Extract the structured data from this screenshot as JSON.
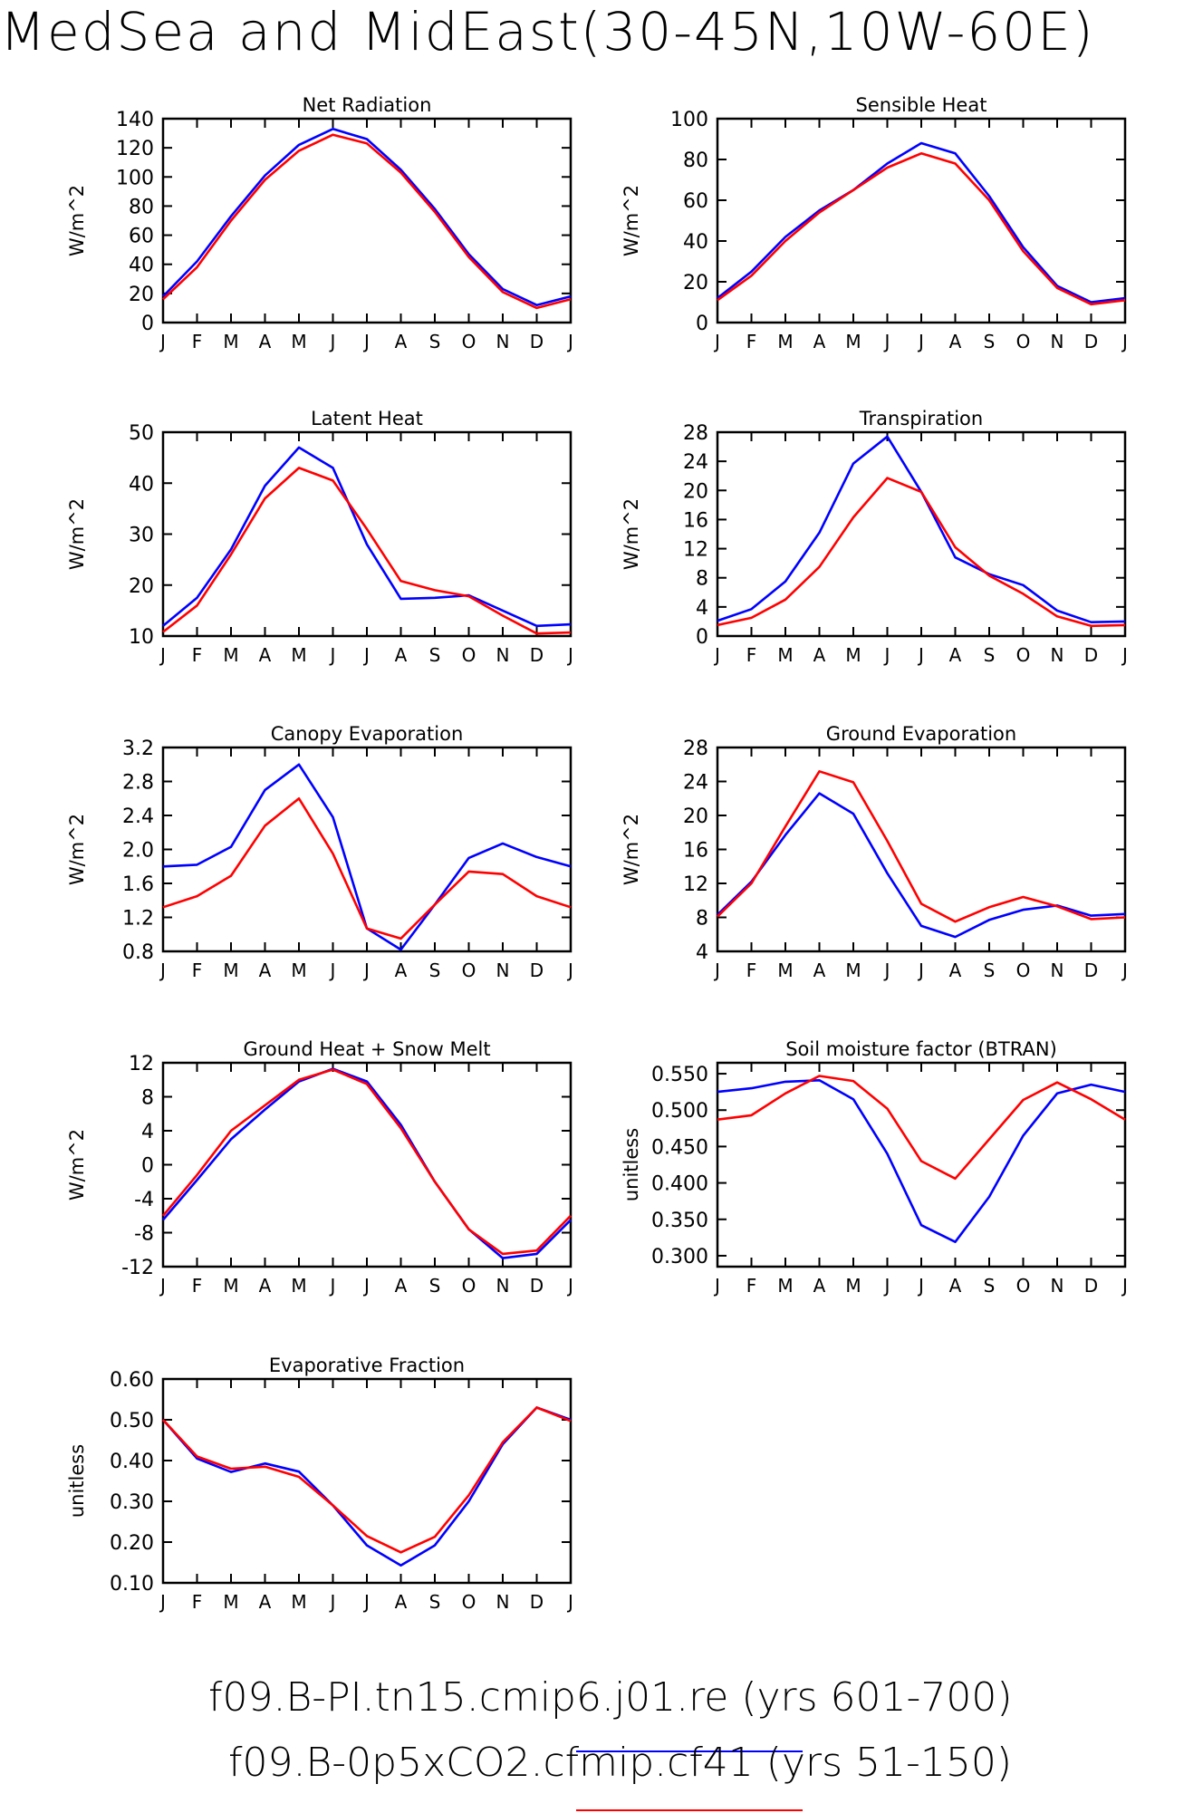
{
  "title": "MedSea and MidEast(30-45N,10W-60E)",
  "colors": {
    "run1": "#0000ff",
    "run2": "#ff0000"
  },
  "legend": [
    {
      "label": "f09.B-PI.tn15.cmip6.j01.re (yrs 601-700)",
      "color": "#0000ff"
    },
    {
      "label": "f09.B-0p5xCO2.cfmip.cf41 (yrs 51-150)",
      "color": "#ff0000"
    }
  ],
  "chart_data": [
    {
      "type": "line",
      "title": "Net Radiation",
      "ylabel": "W/m^2",
      "categories": [
        "J",
        "F",
        "M",
        "A",
        "M",
        "J",
        "J",
        "A",
        "S",
        "O",
        "N",
        "D",
        "J"
      ],
      "ylim": [
        0,
        140
      ],
      "yticks": [
        "0",
        "20",
        "40",
        "60",
        "80",
        "100",
        "120",
        "140"
      ],
      "series": [
        {
          "color": "#0000ff",
          "values": [
            18,
            42,
            73,
            101,
            122,
            133,
            126,
            105,
            78,
            47,
            23,
            12,
            18
          ]
        },
        {
          "color": "#ff0000",
          "values": [
            16,
            38,
            70,
            98,
            118,
            129,
            123,
            103,
            76,
            45,
            21,
            10,
            16
          ]
        }
      ]
    },
    {
      "type": "line",
      "title": "Sensible Heat",
      "ylabel": "W/m^2",
      "categories": [
        "J",
        "F",
        "M",
        "A",
        "M",
        "J",
        "J",
        "A",
        "S",
        "O",
        "N",
        "D",
        "J"
      ],
      "ylim": [
        0,
        100
      ],
      "yticks": [
        "0",
        "20",
        "40",
        "60",
        "80",
        "100"
      ],
      "series": [
        {
          "color": "#0000ff",
          "values": [
            12,
            25,
            42,
            55,
            65,
            78,
            88,
            83,
            62,
            37,
            18,
            10,
            12
          ]
        },
        {
          "color": "#ff0000",
          "values": [
            11,
            23,
            40,
            54,
            65,
            76,
            83,
            78,
            60,
            35,
            17,
            9,
            11
          ]
        }
      ]
    },
    {
      "type": "line",
      "title": "Latent Heat",
      "ylabel": "W/m^2",
      "categories": [
        "J",
        "F",
        "M",
        "A",
        "M",
        "J",
        "J",
        "A",
        "S",
        "O",
        "N",
        "D",
        "J"
      ],
      "ylim": [
        10,
        50
      ],
      "yticks": [
        "10",
        "20",
        "30",
        "40",
        "50"
      ],
      "series": [
        {
          "color": "#0000ff",
          "values": [
            12,
            17.5,
            27,
            39.5,
            47,
            43,
            28,
            17.3,
            17.5,
            18,
            15,
            12,
            12.3
          ]
        },
        {
          "color": "#ff0000",
          "values": [
            10.8,
            16,
            26,
            37,
            43,
            40.5,
            31,
            20.8,
            19,
            17.8,
            14,
            10.5,
            10.7
          ]
        }
      ]
    },
    {
      "type": "line",
      "title": "Transpiration",
      "ylabel": "W/m^2",
      "categories": [
        "J",
        "F",
        "M",
        "A",
        "M",
        "J",
        "J",
        "A",
        "S",
        "O",
        "N",
        "D",
        "J"
      ],
      "ylim": [
        0,
        28
      ],
      "yticks": [
        "0",
        "4",
        "8",
        "12",
        "16",
        "20",
        "24",
        "28"
      ],
      "series": [
        {
          "color": "#0000ff",
          "values": [
            2.1,
            3.7,
            7.5,
            14.2,
            23.7,
            27.4,
            19.8,
            10.8,
            8.5,
            7.0,
            3.5,
            1.9,
            2.0
          ]
        },
        {
          "color": "#ff0000",
          "values": [
            1.5,
            2.5,
            5.0,
            9.5,
            16.3,
            21.7,
            19.8,
            12.2,
            8.3,
            5.8,
            2.7,
            1.4,
            1.5
          ]
        }
      ]
    },
    {
      "type": "line",
      "title": "Canopy Evaporation",
      "ylabel": "W/m^2",
      "categories": [
        "J",
        "F",
        "M",
        "A",
        "M",
        "J",
        "J",
        "A",
        "S",
        "O",
        "N",
        "D",
        "J"
      ],
      "ylim": [
        0.8,
        3.2
      ],
      "yticks": [
        "0.8",
        "1.2",
        "1.6",
        "2.0",
        "2.4",
        "2.8",
        "3.2"
      ],
      "series": [
        {
          "color": "#0000ff",
          "values": [
            1.8,
            1.82,
            2.03,
            2.7,
            3.0,
            2.38,
            1.07,
            0.82,
            1.35,
            1.9,
            2.07,
            1.91,
            1.8
          ]
        },
        {
          "color": "#ff0000",
          "values": [
            1.32,
            1.45,
            1.69,
            2.28,
            2.6,
            1.95,
            1.07,
            0.95,
            1.35,
            1.74,
            1.71,
            1.45,
            1.32
          ]
        }
      ]
    },
    {
      "type": "line",
      "title": "Ground Evaporation",
      "ylabel": "W/m^2",
      "categories": [
        "J",
        "F",
        "M",
        "A",
        "M",
        "J",
        "J",
        "A",
        "S",
        "O",
        "N",
        "D",
        "J"
      ],
      "ylim": [
        4,
        28
      ],
      "yticks": [
        "4",
        "8",
        "12",
        "16",
        "20",
        "24",
        "28"
      ],
      "series": [
        {
          "color": "#0000ff",
          "values": [
            8.3,
            12.2,
            17.7,
            22.6,
            20.2,
            13.2,
            7.0,
            5.7,
            7.7,
            8.9,
            9.4,
            8.2,
            8.4
          ]
        },
        {
          "color": "#ff0000",
          "values": [
            8.1,
            12.0,
            18.7,
            25.2,
            23.9,
            17.0,
            9.6,
            7.5,
            9.2,
            10.4,
            9.3,
            7.8,
            8.0
          ]
        }
      ]
    },
    {
      "type": "line",
      "title": "Ground Heat + Snow Melt",
      "ylabel": "W/m^2",
      "categories": [
        "J",
        "F",
        "M",
        "A",
        "M",
        "J",
        "J",
        "A",
        "S",
        "O",
        "N",
        "D",
        "J"
      ],
      "ylim": [
        -12,
        12
      ],
      "yticks": [
        "-12",
        "-8",
        "-4",
        "0",
        "4",
        "8",
        "12"
      ],
      "series": [
        {
          "color": "#0000ff",
          "values": [
            -6.5,
            -1.8,
            3.0,
            6.5,
            9.8,
            11.3,
            9.8,
            4.7,
            -2.0,
            -7.6,
            -11.0,
            -10.5,
            -6.5
          ]
        },
        {
          "color": "#ff0000",
          "values": [
            -6.0,
            -1.2,
            4.0,
            7.0,
            10.0,
            11.2,
            9.5,
            4.3,
            -2.0,
            -7.6,
            -10.5,
            -10.1,
            -6.0
          ]
        }
      ]
    },
    {
      "type": "line",
      "title": "Soil moisture factor (BTRAN)",
      "ylabel": "unitless",
      "categories": [
        "J",
        "F",
        "M",
        "A",
        "M",
        "J",
        "J",
        "A",
        "S",
        "O",
        "N",
        "D",
        "J"
      ],
      "ylim": [
        0.285,
        0.565
      ],
      "yticks": [
        "0.300",
        "0.350",
        "0.400",
        "0.450",
        "0.500",
        "0.550"
      ],
      "series": [
        {
          "color": "#0000ff",
          "values": [
            0.525,
            0.53,
            0.539,
            0.541,
            0.515,
            0.44,
            0.342,
            0.319,
            0.381,
            0.465,
            0.523,
            0.535,
            0.525
          ]
        },
        {
          "color": "#ff0000",
          "values": [
            0.487,
            0.493,
            0.523,
            0.547,
            0.54,
            0.502,
            0.43,
            0.406,
            0.46,
            0.514,
            0.538,
            0.515,
            0.487
          ]
        }
      ]
    },
    {
      "type": "line",
      "title": "Evaporative Fraction",
      "ylabel": "unitless",
      "categories": [
        "J",
        "F",
        "M",
        "A",
        "M",
        "J",
        "J",
        "A",
        "S",
        "O",
        "N",
        "D",
        "J"
      ],
      "ylim": [
        0.1,
        0.6
      ],
      "yticks": [
        "0.10",
        "0.20",
        "0.30",
        "0.40",
        "0.50",
        "0.60"
      ],
      "series": [
        {
          "color": "#0000ff",
          "values": [
            0.5,
            0.405,
            0.372,
            0.393,
            0.373,
            0.29,
            0.192,
            0.143,
            0.192,
            0.3,
            0.44,
            0.53,
            0.5
          ]
        },
        {
          "color": "#ff0000",
          "values": [
            0.5,
            0.41,
            0.38,
            0.385,
            0.36,
            0.29,
            0.215,
            0.175,
            0.213,
            0.315,
            0.445,
            0.53,
            0.497
          ]
        }
      ]
    }
  ]
}
